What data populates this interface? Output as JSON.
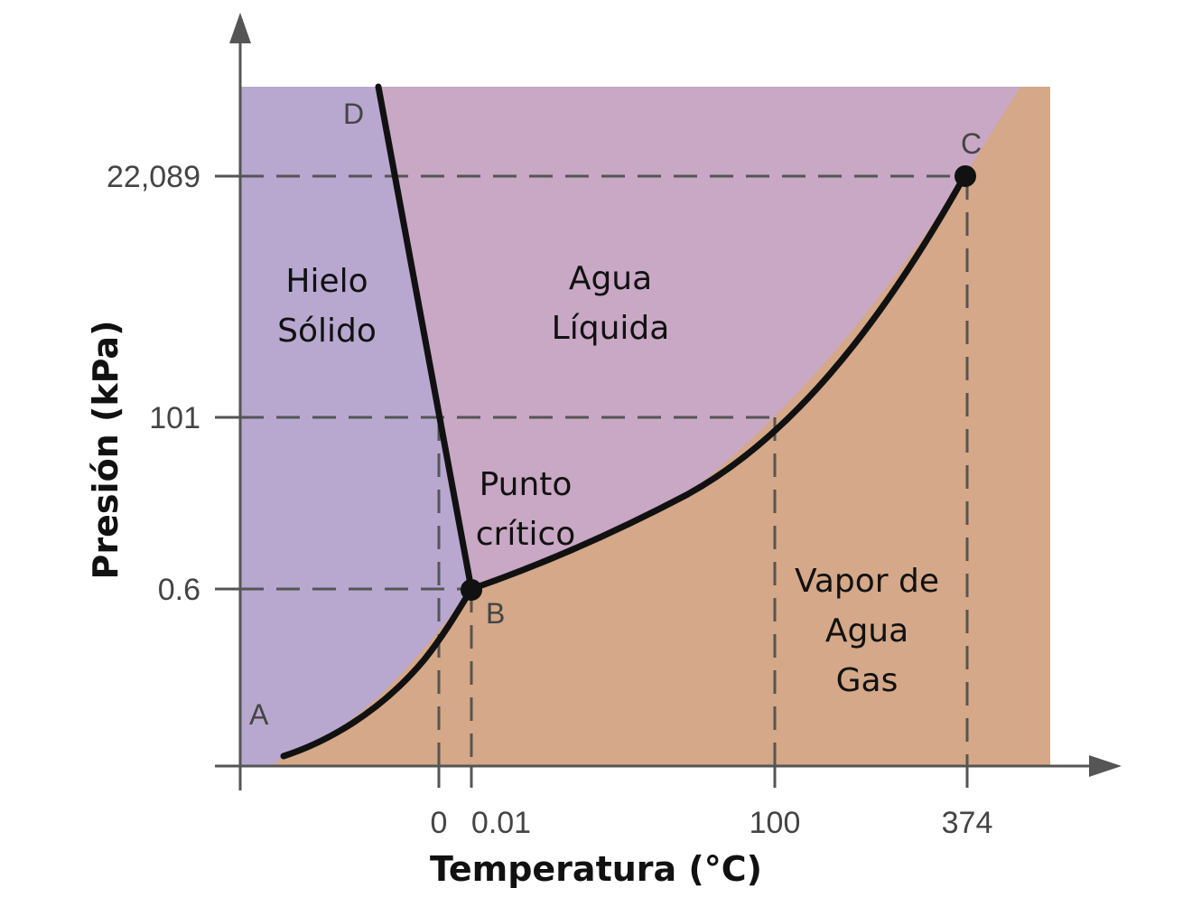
{
  "axes": {
    "x_title": "Temperatura (°C)",
    "y_title": "Presión (kPa)",
    "x_ticks": [
      "0",
      "0.01",
      "100",
      "374"
    ],
    "y_ticks": [
      "22,089",
      "101",
      "0.6"
    ]
  },
  "regions": {
    "solid": [
      "Hielo",
      "Sólido"
    ],
    "liquid": [
      "Agua",
      "Líquida"
    ],
    "gas": [
      "Vapor de",
      "Agua",
      "Gas"
    ],
    "triple_note": [
      "Punto",
      "crítico"
    ]
  },
  "points": {
    "A": "A",
    "B": "B",
    "C": "C",
    "D": "D"
  },
  "colors": {
    "solid_region": "#b8a8d0",
    "liquid_region": "#c8a8c4",
    "gas_region": "#d4a888",
    "curve": "#111111",
    "axis": "#555555"
  }
}
